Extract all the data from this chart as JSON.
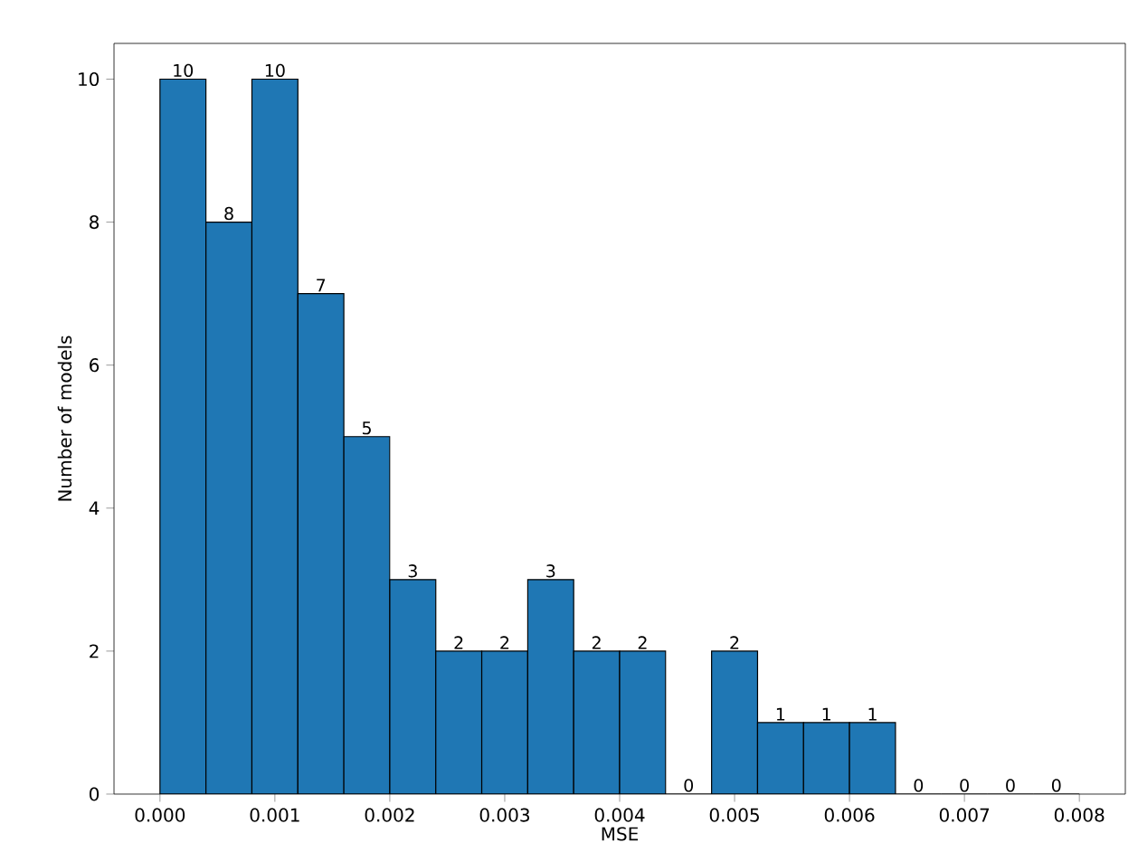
{
  "chart_data": {
    "type": "histogram",
    "xlabel": "MSE",
    "ylabel": "Number of models",
    "bins": [
      0,
      0.0004,
      0.0008,
      0.0012,
      0.0016,
      0.002,
      0.0024,
      0.0028,
      0.0032,
      0.0036,
      0.004,
      0.0044,
      0.0048,
      0.0052,
      0.0056,
      0.006,
      0.0064,
      0.0068,
      0.0072,
      0.0076,
      0.008
    ],
    "values": [
      10,
      8,
      10,
      7,
      5,
      3,
      2,
      2,
      3,
      2,
      2,
      0,
      2,
      1,
      1,
      1,
      0,
      0,
      0,
      0
    ],
    "color": "#1f77b4",
    "data_labels": true,
    "xlim": [
      -0.0004,
      0.0084
    ],
    "ylim": [
      0,
      10.5
    ],
    "xticks": [
      {
        "value": 0,
        "label": "0.000"
      },
      {
        "value": 0.001,
        "label": "0.001"
      },
      {
        "value": 0.002,
        "label": "0.002"
      },
      {
        "value": 0.003,
        "label": "0.003"
      },
      {
        "value": 0.004,
        "label": "0.004"
      },
      {
        "value": 0.005,
        "label": "0.005"
      },
      {
        "value": 0.006,
        "label": "0.006"
      },
      {
        "value": 0.007,
        "label": "0.007"
      },
      {
        "value": 0.008,
        "label": "0.008"
      }
    ],
    "yticks": [
      0,
      2,
      4,
      6,
      8,
      10
    ]
  }
}
